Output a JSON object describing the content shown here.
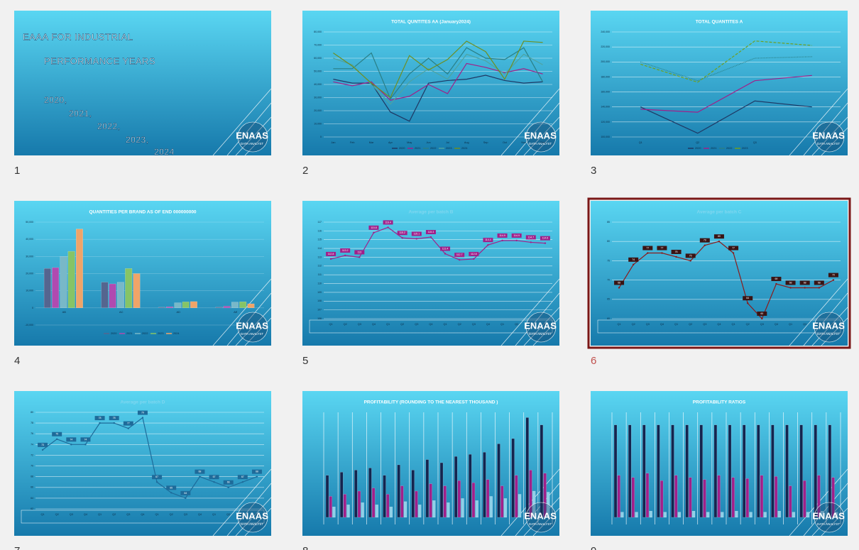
{
  "logo": {
    "name": "ENAAS",
    "tagline": "DATA ANALYST"
  },
  "slides": [
    {
      "number": "1",
      "lines": [
        "EAAA FOR INDUSTRIAL",
        "PERFORMANCE YEARS",
        "2020,",
        "2021,",
        "2022,",
        "2023,",
        "2024"
      ]
    },
    {
      "number": "2",
      "chart": {
        "type": "line",
        "title": "TOTAL QUNTITES  AA (January2024)",
        "title_color": "#ffffff",
        "legend": true,
        "categories": [
          "Jan",
          "Feb",
          "Mar",
          "Apr",
          "May",
          "Jun",
          "Jul",
          "Aug",
          "Sep",
          "Oct",
          "Nov",
          "Dec"
        ],
        "ylim": [
          0,
          80000
        ],
        "yticks": [
          0,
          {
            "value": 10000,
            "label": "10,000"
          },
          {
            "value": 20000,
            "label": "20,000"
          },
          {
            "value": 30000,
            "label": "30,000"
          },
          {
            "value": 40000,
            "label": "40,000"
          },
          {
            "value": 50000,
            "label": "50,000"
          },
          {
            "value": 60000,
            "label": "60,000"
          },
          {
            "value": 70000,
            "label": "70,000"
          },
          {
            "value": 80000,
            "label": "80,000"
          }
        ],
        "series": [
          {
            "name": "2020",
            "color": "#1f3864",
            "values": [
              44000,
              41000,
              41000,
              19000,
              12000,
              41000,
              43000,
              44000,
              47000,
              43000,
              41000,
              42000
            ]
          },
          {
            "name": "2021",
            "color": "#a0208a",
            "values": [
              42000,
              39000,
              42000,
              28000,
              31000,
              40000,
              33000,
              56000,
              53000,
              49000,
              52000,
              48000
            ]
          },
          {
            "name": "2022",
            "color": "#2a7f86",
            "values": [
              52000,
              52000,
              64000,
              29000,
              48000,
              60000,
              48000,
              68000,
              60000,
              59000,
              68000,
              42000
            ]
          },
          {
            "name": "2023",
            "color": "#4fa3a0",
            "values": [
              60000,
              55000,
              40000,
              25000,
              42000,
              52000,
              44000,
              63000,
              58000,
              48000,
              63000,
              55000
            ]
          },
          {
            "name": "2024",
            "color": "#6f8f20",
            "values": [
              64000,
              54000,
              41000,
              30000,
              62000,
              51000,
              59000,
              73000,
              65000,
              44000,
              73000,
              72000
            ]
          }
        ]
      }
    },
    {
      "number": "3",
      "chart": {
        "type": "line",
        "title": "TOTAL QUANTITES    A",
        "title_color": "#ffffff",
        "legend": true,
        "categories": [
          "Q1",
          "Q2",
          "Q3",
          null
        ],
        "ylim": [
          100000,
          240000
        ],
        "yticks": [
          {
            "value": 100000,
            "label": "100,000"
          },
          {
            "value": 120000,
            "label": "120,000"
          },
          {
            "value": 140000,
            "label": "140,000"
          },
          {
            "value": 160000,
            "label": "160,000"
          },
          {
            "value": 180000,
            "label": "180,000"
          },
          {
            "value": 200000,
            "label": "200,000"
          },
          {
            "value": 220000,
            "label": "220,000"
          },
          {
            "value": 240000,
            "label": "240,000"
          }
        ],
        "series": [
          {
            "name": "2020",
            "color": "#1f3864",
            "dash": "solid",
            "values": [
              140000,
              105000,
              148000,
              140000
            ]
          },
          {
            "name": "2021",
            "color": "#a0208a",
            "dash": "solid",
            "values": [
              137000,
              133000,
              175000,
              182000
            ]
          },
          {
            "name": "2022",
            "color": "#2a7f86",
            "dash": "dotted",
            "values": [
              200000,
              175000,
              205000,
              207000
            ]
          },
          {
            "name": "2023",
            "color": "#6f9f20",
            "dash": "dashed",
            "values": [
              197000,
              173000,
              228000,
              222000
            ]
          }
        ]
      }
    },
    {
      "number": "4",
      "chart": {
        "type": "bar",
        "title": "QUANTITIES PER BRAND AS OF END 000000000",
        "title_color": "#ffffff",
        "legend": true,
        "categories": [
          "AB",
          "AC",
          "AD",
          "AE"
        ],
        "ylim": [
          -10000,
          50000
        ],
        "yticks": [
          {
            "value": -10000,
            "label": "-10,000"
          },
          0,
          {
            "value": 10000,
            "label": "10,000"
          },
          {
            "value": 20000,
            "label": "20,000"
          },
          {
            "value": 30000,
            "label": "30,000"
          },
          {
            "value": 40000,
            "label": "40,000"
          },
          {
            "value": 50000,
            "label": "50,000"
          }
        ],
        "series": [
          {
            "name": "2020",
            "color": "#55658f",
            "values": [
              23000,
              15000,
              400,
              500
            ]
          },
          {
            "name": "2021",
            "color": "#b04ab0",
            "values": [
              23500,
              14000,
              700,
              1000
            ]
          },
          {
            "name": "2022",
            "color": "#78b8c8",
            "values": [
              30000,
              15000,
              3000,
              3400
            ]
          },
          {
            "name": "2023",
            "color": "#86c466",
            "values": [
              33000,
              23000,
              3500,
              3600
            ]
          },
          {
            "name": "2024",
            "color": "#f0a468",
            "values": [
              46000,
              20000,
              3700,
              2400
            ]
          }
        ]
      }
    },
    {
      "number": "5",
      "chart": {
        "type": "line",
        "title": "Average per batch    B",
        "title_color": "#7fd6ef",
        "data_labels": true,
        "label_box": "#a0208a",
        "categories": [
          "Q1",
          "Q2",
          "Q3",
          "Q4",
          "Q1",
          "Q2",
          "Q3",
          "Q4",
          "Q1",
          "Q2",
          "Q3",
          "Q4",
          "Q1",
          "Q2",
          "Q3",
          "Q4"
        ],
        "ylim": [
          106,
          117
        ],
        "yticks": [
          106,
          107,
          108,
          109,
          110,
          111,
          112,
          113,
          114,
          115,
          116,
          117
        ],
        "series": [
          {
            "color": "#a0208a",
            "values": [
              112.8,
              113.2,
              113,
              115.8,
              116.4,
              115.2,
              115.1,
              115.3,
              113.4,
              112.7,
              112.8,
              114.4,
              114.9,
              114.9,
              114.7,
              114.6
            ]
          }
        ]
      }
    },
    {
      "number": "6",
      "selected": true,
      "chart": {
        "type": "line",
        "title": "Average per batch    C",
        "title_color": "#7fd6ef",
        "data_labels": true,
        "label_box": "#3a1414",
        "categories": [
          "Q1",
          "Q2",
          "Q3",
          "Q4",
          "Q1",
          "Q2",
          "Q3",
          "Q4",
          "Q1",
          "Q2",
          "Q3",
          "Q4",
          "Q1",
          "Q2",
          "Q3",
          "Q4"
        ],
        "ylim": [
          60,
          85
        ],
        "yticks": [
          60,
          65,
          70,
          75,
          80,
          85
        ],
        "series": [
          {
            "color": "#8b1a1a",
            "values": [
              68,
              74,
              77,
              77,
              76,
              75,
              79,
              80,
              77,
              64,
              60,
              69,
              68,
              68,
              68,
              70
            ]
          }
        ]
      }
    },
    {
      "number": "7",
      "chart": {
        "type": "line",
        "title": "Average per batch    D",
        "title_color": "#7fd6ef",
        "data_labels": true,
        "label_box": "#1e6b9a",
        "categories": [
          "Q1",
          "Q2",
          "Q3",
          "Q4",
          "Q1",
          "Q2",
          "Q3",
          "Q4",
          "Q1",
          "Q2",
          "Q3",
          "Q4",
          "Q1",
          "Q2",
          "Q3",
          "Q4"
        ],
        "ylim": [
          62,
          80
        ],
        "yticks": [
          62,
          64,
          66,
          68,
          70,
          72,
          74,
          76,
          78,
          80
        ],
        "series": [
          {
            "color": "#1e6b9a",
            "values": [
              73,
              75,
              74,
              74,
              78,
              78,
              77,
              79,
              67,
              65,
              64,
              68,
              67,
              66,
              67,
              68
            ]
          }
        ]
      }
    },
    {
      "number": "8",
      "chart": {
        "type": "bar",
        "title": "PROFITABILITY (ROUNDING TO THE NEAREST THOUSAND )",
        "title_color": "#ffffff",
        "categories": [
          null,
          null,
          null,
          null,
          null,
          null,
          null,
          null,
          null,
          null,
          null,
          null,
          null,
          null,
          null,
          null
        ],
        "ylim": [
          0,
          100
        ],
        "series": [
          {
            "color": "#14254f",
            "values": [
              40,
              43,
              45,
              47,
              40,
              50,
              45,
              55,
              52,
              58,
              60,
              62,
              70,
              75,
              95,
              88
            ]
          },
          {
            "color": "#a0208a",
            "values": [
              20,
              22,
              25,
              28,
              22,
              30,
              25,
              32,
              30,
              35,
              33,
              36,
              30,
              40,
              45,
              42
            ]
          },
          {
            "color": "#8fd0e8",
            "values": [
              10,
              12,
              14,
              12,
              10,
              15,
              12,
              16,
              14,
              18,
              16,
              20,
              18,
              22,
              25,
              24
            ]
          }
        ]
      }
    },
    {
      "number": "9",
      "chart": {
        "type": "bar",
        "title": "PROFITABILITY RATIOS",
        "title_color": "#ffffff",
        "categories": [
          null,
          null,
          null,
          null,
          null,
          null,
          null,
          null,
          null,
          null,
          null,
          null,
          null,
          null,
          null,
          null
        ],
        "ylim": [
          0,
          100
        ],
        "series": [
          {
            "color": "#14254f",
            "values": [
              88,
              88,
              88,
              88,
              88,
              88,
              88,
              88,
              88,
              88,
              88,
              88,
              88,
              88,
              88,
              88
            ]
          },
          {
            "color": "#a0208a",
            "values": [
              40,
              38,
              42,
              35,
              40,
              38,
              36,
              40,
              38,
              37,
              40,
              39,
              30,
              35,
              40,
              38
            ]
          },
          {
            "color": "#8fd0e8",
            "values": [
              5,
              5,
              6,
              5,
              5,
              6,
              5,
              5,
              6,
              5,
              5,
              6,
              5,
              5,
              6,
              5
            ]
          }
        ]
      }
    }
  ]
}
